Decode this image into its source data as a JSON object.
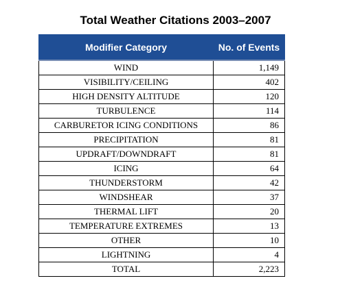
{
  "title": "Total Weather Citations 2003–2007",
  "table": {
    "headers": [
      "Modifier Category",
      "No. of Events"
    ],
    "rows": [
      {
        "category": "WIND",
        "events": "1,149"
      },
      {
        "category": "VISIBILITY/CEILING",
        "events": "402"
      },
      {
        "category": "HIGH DENSITY ALTITUDE",
        "events": "120"
      },
      {
        "category": "TURBULENCE",
        "events": "114"
      },
      {
        "category": "CARBURETOR ICING CONDITIONS",
        "events": "86"
      },
      {
        "category": "PRECIPITATION",
        "events": "81"
      },
      {
        "category": "UPDRAFT/DOWNDRAFT",
        "events": "81"
      },
      {
        "category": "ICING",
        "events": "64"
      },
      {
        "category": "THUNDERSTORM",
        "events": "42"
      },
      {
        "category": "WINDSHEAR",
        "events": "37"
      },
      {
        "category": "THERMAL LIFT",
        "events": "20"
      },
      {
        "category": "TEMPERATURE EXTREMES",
        "events": "13"
      },
      {
        "category": "OTHER",
        "events": "10"
      },
      {
        "category": "LIGHTNING",
        "events": "4"
      },
      {
        "category": "TOTAL",
        "events": "2,223"
      }
    ]
  },
  "colors": {
    "header_background": "#1f4e95",
    "header_text": "#ffffff"
  }
}
